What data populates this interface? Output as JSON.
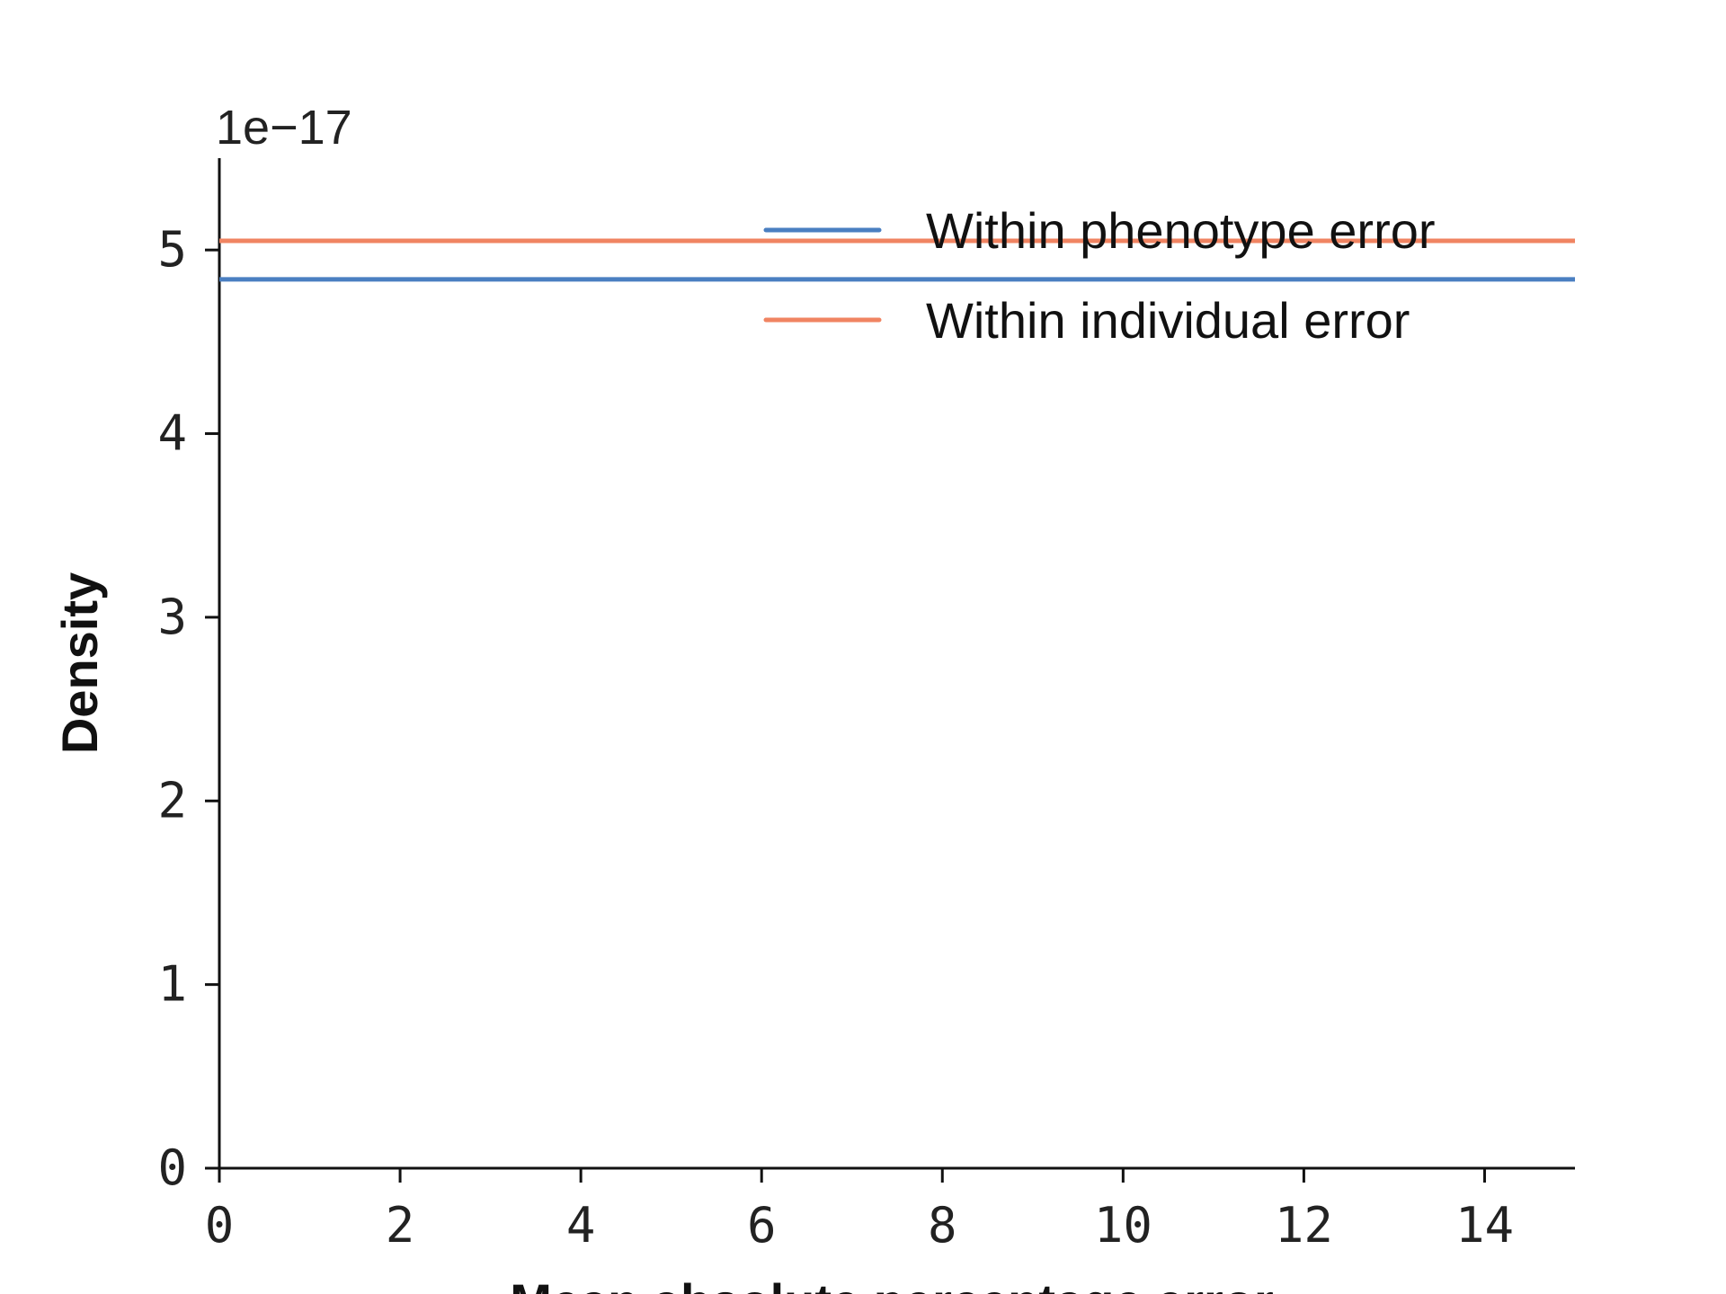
{
  "chart_data": {
    "type": "line",
    "title": "",
    "xlabel": "Mean absolute percentage error",
    "ylabel": "Density",
    "y_offset_label": "1e−17",
    "xlim": [
      0,
      15
    ],
    "ylim": [
      0,
      5.5
    ],
    "xticks": [
      0,
      2,
      4,
      6,
      8,
      10,
      12,
      14
    ],
    "xtick_labels": [
      "0",
      "2",
      "4",
      "6",
      "8",
      "10",
      "12",
      "14"
    ],
    "yticks": [
      0,
      1,
      2,
      3,
      4,
      5
    ],
    "ytick_labels": [
      "0",
      "1",
      "2",
      "3",
      "4",
      "5"
    ],
    "grid": false,
    "legend_position": "top-right",
    "series": [
      {
        "name": "Within phenotype error",
        "color": "#4a7fc1",
        "x": [
          0,
          15
        ],
        "y": [
          4.84,
          4.84
        ]
      },
      {
        "name": "Within individual error",
        "color": "#f08462",
        "x": [
          0,
          15
        ],
        "y": [
          5.05,
          5.05
        ]
      }
    ]
  }
}
